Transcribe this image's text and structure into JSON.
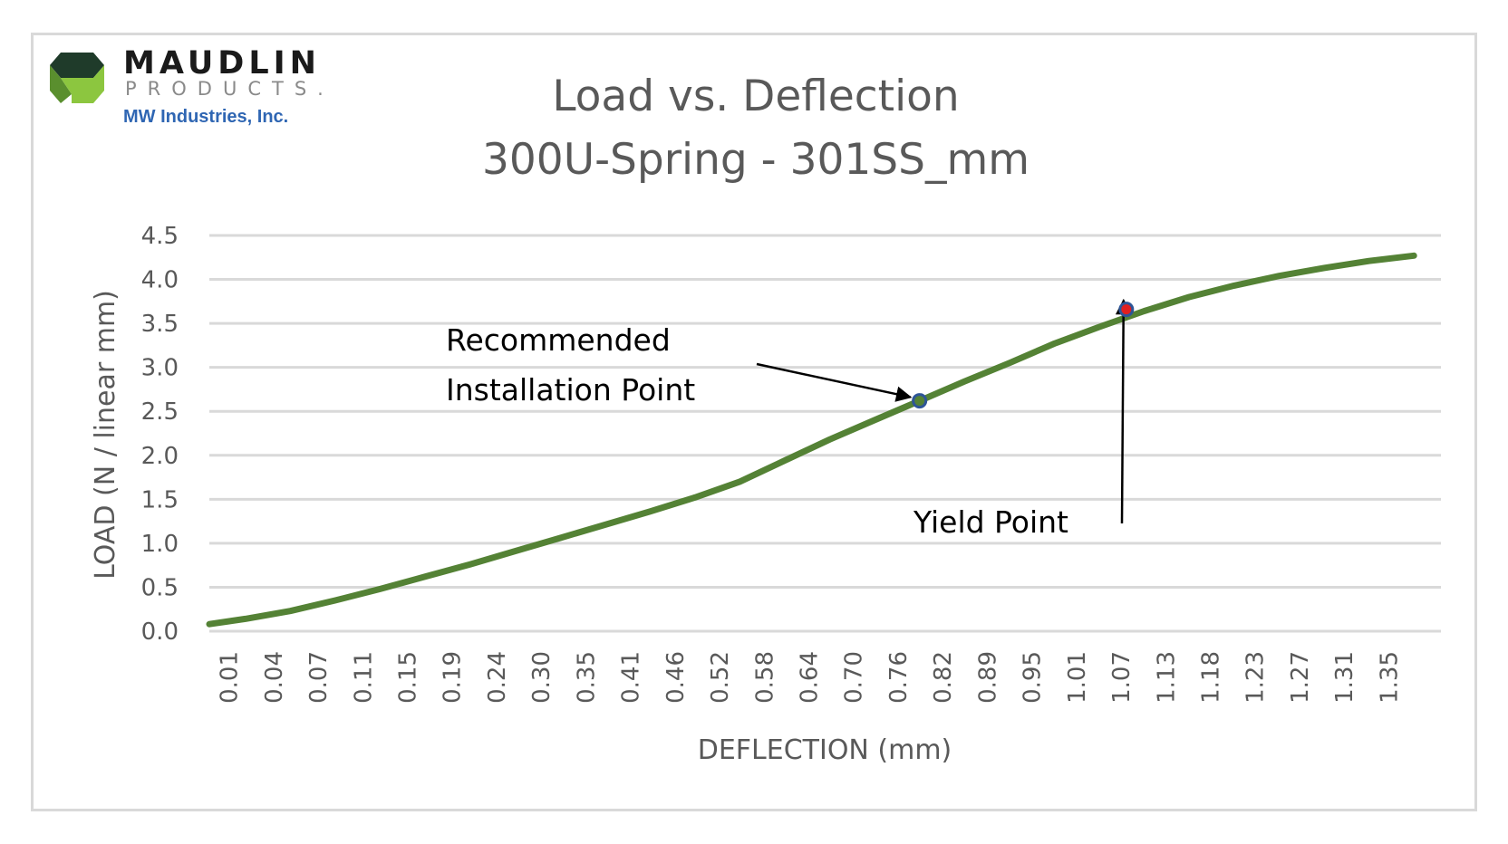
{
  "logo": {
    "brand": "MAUDLIN",
    "sub": "PRODUCTS.",
    "tagline": "MW Industries, Inc.",
    "icon": "hexagon-cube-logo-icon",
    "colors": {
      "dark": "#1f3b2a",
      "mid": "#5a8f2e",
      "light": "#8cc63f"
    }
  },
  "chart_data": {
    "type": "line",
    "title": "Load vs. Deflection",
    "subtitle": "300U-Spring - 301SS_mm",
    "xlabel": "DEFLECTION (mm)",
    "ylabel": "LOAD (N / linear mm)",
    "ylim": [
      0,
      4.5
    ],
    "yticks": [
      "0.0",
      "0.5",
      "1.0",
      "1.5",
      "2.0",
      "2.5",
      "3.0",
      "3.5",
      "4.0",
      "4.5"
    ],
    "categories": [
      "0.01",
      "0.04",
      "0.07",
      "0.11",
      "0.15",
      "0.19",
      "0.24",
      "0.30",
      "0.35",
      "0.41",
      "0.46",
      "0.52",
      "0.58",
      "0.64",
      "0.70",
      "0.76",
      "0.82",
      "0.89",
      "0.95",
      "1.01",
      "1.07",
      "1.13",
      "1.18",
      "1.23",
      "1.27",
      "1.31",
      "1.35"
    ],
    "grid": true,
    "series": [
      {
        "color": "#548235",
        "points": [
          [
            0.01,
            0.08
          ],
          [
            0.05,
            0.14
          ],
          [
            0.1,
            0.23
          ],
          [
            0.15,
            0.35
          ],
          [
            0.2,
            0.48
          ],
          [
            0.25,
            0.62
          ],
          [
            0.3,
            0.76
          ],
          [
            0.35,
            0.91
          ],
          [
            0.4,
            1.06
          ],
          [
            0.45,
            1.21
          ],
          [
            0.5,
            1.36
          ],
          [
            0.55,
            1.52
          ],
          [
            0.6,
            1.7
          ],
          [
            0.65,
            1.94
          ],
          [
            0.7,
            2.18
          ],
          [
            0.75,
            2.4
          ],
          [
            0.8,
            2.62
          ],
          [
            0.85,
            2.84
          ],
          [
            0.9,
            3.05
          ],
          [
            0.95,
            3.27
          ],
          [
            1.0,
            3.46
          ],
          [
            1.05,
            3.64
          ],
          [
            1.1,
            3.8
          ],
          [
            1.15,
            3.93
          ],
          [
            1.2,
            4.04
          ],
          [
            1.25,
            4.13
          ],
          [
            1.3,
            4.21
          ],
          [
            1.35,
            4.27
          ]
        ]
      }
    ],
    "markers": [
      {
        "x": 0.8,
        "y": 2.62,
        "fill": "#548235",
        "stroke": "#2e5597"
      },
      {
        "x": 1.03,
        "y": 3.66,
        "fill": "#e02020",
        "stroke": "#2e5597"
      }
    ],
    "annotations": [
      {
        "lines": [
          "Recommended",
          "Installation Point"
        ],
        "target": 0
      },
      {
        "lines": [
          "Yield Point"
        ],
        "target": 1
      }
    ]
  }
}
